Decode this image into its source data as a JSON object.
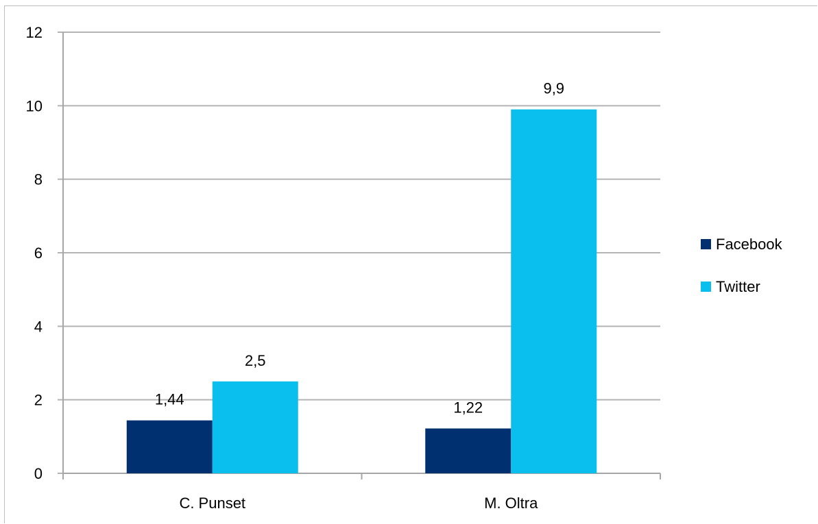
{
  "chart_data": {
    "type": "bar",
    "title": "",
    "xlabel": "",
    "ylabel": "",
    "categories": [
      "C. Punset",
      "M. Oltra"
    ],
    "series": [
      {
        "name": "Facebook",
        "color": "#003070",
        "values": [
          1.44,
          1.22
        ],
        "labels": [
          "1,44",
          "1,22"
        ]
      },
      {
        "name": "Twitter",
        "color": "#0ABEEE",
        "values": [
          2.5,
          9.9
        ],
        "labels": [
          "2,5",
          "9,9"
        ]
      }
    ],
    "ylim": [
      0,
      12
    ],
    "yticks": [
      0,
      2,
      4,
      6,
      8,
      10,
      12
    ],
    "ytick_labels": [
      "0",
      "2",
      "4",
      "6",
      "8",
      "10",
      "12"
    ],
    "grid": true,
    "legend_position": "right"
  }
}
